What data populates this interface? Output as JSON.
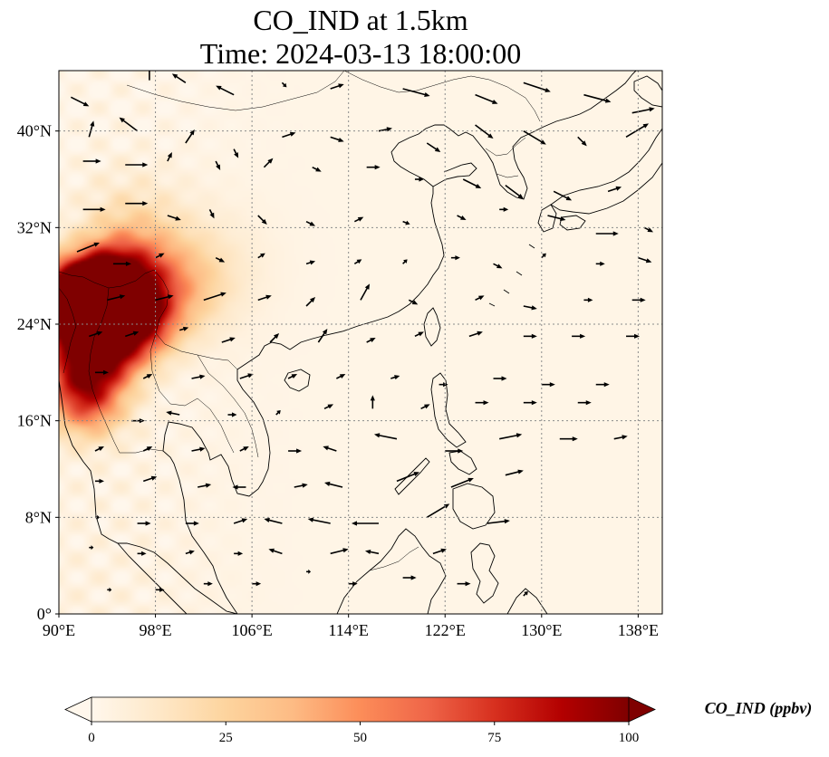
{
  "title": {
    "line1": "CO_IND at 1.5km",
    "line2": "Time: 2024-03-13 18:00:00"
  },
  "map": {
    "extent": {
      "lon_min": 90,
      "lon_max": 140,
      "lat_min": 0,
      "lat_max": 45
    },
    "projection": "PlateCarree",
    "gridlines": "dotted",
    "lon_ticks": [
      {
        "value": 90,
        "label": "90°E"
      },
      {
        "value": 98,
        "label": "98°E"
      },
      {
        "value": 106,
        "label": "106°E"
      },
      {
        "value": 114,
        "label": "114°E"
      },
      {
        "value": 122,
        "label": "122°E"
      },
      {
        "value": 130,
        "label": "130°E"
      },
      {
        "value": 138,
        "label": "138°E"
      }
    ],
    "lat_ticks": [
      {
        "value": 0,
        "label": "0°"
      },
      {
        "value": 8,
        "label": "8°N"
      },
      {
        "value": 16,
        "label": "16°N"
      },
      {
        "value": 24,
        "label": "24°N"
      },
      {
        "value": 32,
        "label": "32°N"
      },
      {
        "value": 40,
        "label": "40°N"
      }
    ],
    "field_colormap": "OrRd",
    "field_hotspots": [
      {
        "lon": 90.8,
        "lat": 26.2,
        "value": 100,
        "sd": 2.0
      },
      {
        "lon": 92.5,
        "lat": 24.5,
        "value": 95,
        "sd": 2.2
      },
      {
        "lon": 93.5,
        "lat": 27.3,
        "value": 85,
        "sd": 2.0
      },
      {
        "lon": 95.5,
        "lat": 26.0,
        "value": 70,
        "sd": 2.0
      },
      {
        "lon": 94.0,
        "lat": 22.0,
        "value": 70,
        "sd": 2.0
      },
      {
        "lon": 91.5,
        "lat": 20.0,
        "value": 55,
        "sd": 2.4
      },
      {
        "lon": 97.0,
        "lat": 24.0,
        "value": 55,
        "sd": 2.0
      },
      {
        "lon": 96.0,
        "lat": 29.0,
        "value": 40,
        "sd": 2.5
      },
      {
        "lon": 99.5,
        "lat": 27.0,
        "value": 30,
        "sd": 2.5
      },
      {
        "lon": 92.5,
        "lat": 17.5,
        "value": 45,
        "sd": 2.0
      },
      {
        "lon": 102.0,
        "lat": 28.5,
        "value": 10,
        "sd": 3.5
      },
      {
        "lon": 96.0,
        "lat": 33.0,
        "value": 10,
        "sd": 3.0
      }
    ],
    "wind_vectors": [
      [
        91.0,
        42.8,
        2.0,
        -1.0
      ],
      [
        97.5,
        44.2,
        0.0,
        2.0
      ],
      [
        100.5,
        44.0,
        -1.5,
        1.0
      ],
      [
        104.5,
        43.0,
        -2.0,
        1.0
      ],
      [
        108.5,
        44.0,
        0.5,
        -0.5
      ],
      [
        112.5,
        43.5,
        1.5,
        0.5
      ],
      [
        118.5,
        43.5,
        3.0,
        -0.8
      ],
      [
        124.5,
        43.0,
        2.5,
        -1.0
      ],
      [
        128.5,
        44.0,
        3.0,
        -1.0
      ],
      [
        133.5,
        43.0,
        3.0,
        -0.8
      ],
      [
        137.5,
        41.5,
        2.5,
        0.5
      ],
      [
        92.5,
        39.5,
        0.5,
        1.8
      ],
      [
        96.5,
        40.0,
        -2.0,
        1.5
      ],
      [
        100.5,
        39.0,
        1.0,
        1.5
      ],
      [
        104.5,
        38.5,
        0.5,
        -1.0
      ],
      [
        108.5,
        39.5,
        1.5,
        0.5
      ],
      [
        112.5,
        39.5,
        1.5,
        -0.5
      ],
      [
        116.5,
        40.0,
        1.5,
        0.3
      ],
      [
        120.5,
        39.0,
        1.5,
        -1.0
      ],
      [
        124.5,
        40.5,
        2.0,
        -1.5
      ],
      [
        128.5,
        40.0,
        2.5,
        -1.5
      ],
      [
        133.0,
        39.5,
        1.0,
        -1.0
      ],
      [
        137.0,
        39.5,
        2.5,
        1.5
      ],
      [
        92.0,
        37.5,
        2.0,
        0.0
      ],
      [
        95.5,
        37.2,
        2.5,
        0.0
      ],
      [
        99.0,
        37.5,
        0.5,
        1.0
      ],
      [
        103.0,
        37.5,
        0.5,
        -1.0
      ],
      [
        107.0,
        37.0,
        1.0,
        1.0
      ],
      [
        111.0,
        37.0,
        1.0,
        -0.5
      ],
      [
        115.5,
        37.0,
        1.5,
        0.0
      ],
      [
        119.5,
        36.0,
        1.0,
        0.0
      ],
      [
        123.5,
        36.0,
        2.0,
        -1.0
      ],
      [
        127.0,
        35.5,
        2.0,
        -1.5
      ],
      [
        131.0,
        35.0,
        2.0,
        -1.0
      ],
      [
        135.5,
        35.0,
        1.5,
        0.5
      ],
      [
        92.0,
        33.5,
        2.5,
        0.0
      ],
      [
        95.5,
        34.0,
        2.5,
        0.0
      ],
      [
        99.0,
        33.0,
        1.5,
        -0.5
      ],
      [
        102.5,
        33.5,
        0.5,
        -1.0
      ],
      [
        106.5,
        33.0,
        1.0,
        -1.0
      ],
      [
        110.5,
        32.5,
        1.0,
        -0.5
      ],
      [
        114.5,
        32.5,
        1.0,
        0.5
      ],
      [
        118.5,
        32.5,
        0.8,
        -0.3
      ],
      [
        123.0,
        33.0,
        1.0,
        -0.5
      ],
      [
        126.5,
        33.5,
        1.0,
        0.0
      ],
      [
        130.5,
        33.0,
        2.0,
        -0.5
      ],
      [
        134.5,
        31.5,
        2.5,
        0.0
      ],
      [
        138.5,
        32.0,
        1.0,
        -0.5
      ],
      [
        91.5,
        30.0,
        2.5,
        1.0
      ],
      [
        94.5,
        29.0,
        2.0,
        0.0
      ],
      [
        98.0,
        29.5,
        1.0,
        0.5
      ],
      [
        103.0,
        29.5,
        1.0,
        -0.5
      ],
      [
        106.5,
        29.5,
        0.8,
        0.5
      ],
      [
        110.5,
        29.0,
        1.0,
        0.3
      ],
      [
        114.5,
        29.0,
        0.8,
        0.5
      ],
      [
        118.5,
        29.0,
        0.5,
        0.5
      ],
      [
        122.5,
        29.5,
        1.0,
        0.0
      ],
      [
        126.0,
        29.0,
        1.0,
        -0.5
      ],
      [
        130.0,
        29.5,
        0.5,
        0.5
      ],
      [
        134.5,
        29.0,
        1.0,
        0.0
      ],
      [
        138.0,
        29.5,
        1.5,
        -0.5
      ],
      [
        94.0,
        26.0,
        2.0,
        0.5
      ],
      [
        98.0,
        26.0,
        2.0,
        0.5
      ],
      [
        102.0,
        26.0,
        2.5,
        0.8
      ],
      [
        106.5,
        26.0,
        1.5,
        0.5
      ],
      [
        110.5,
        25.5,
        1.0,
        1.0
      ],
      [
        115.0,
        26.0,
        1.0,
        1.8
      ],
      [
        119.0,
        26.0,
        1.0,
        -0.5
      ],
      [
        124.5,
        26.0,
        1.0,
        0.5
      ],
      [
        128.5,
        25.5,
        1.5,
        -0.3
      ],
      [
        133.5,
        26.0,
        1.0,
        0.0
      ],
      [
        137.5,
        26.0,
        1.5,
        0.0
      ],
      [
        92.5,
        23.0,
        1.5,
        0.5
      ],
      [
        95.5,
        23.0,
        1.5,
        0.5
      ],
      [
        100.0,
        23.5,
        1.0,
        0.3
      ],
      [
        103.5,
        22.5,
        1.5,
        0.5
      ],
      [
        107.5,
        22.5,
        1.0,
        1.0
      ],
      [
        111.5,
        22.5,
        1.0,
        1.5
      ],
      [
        115.5,
        22.5,
        1.0,
        0.5
      ],
      [
        119.5,
        23.0,
        1.0,
        0.5
      ],
      [
        124.0,
        23.0,
        1.5,
        0.5
      ],
      [
        128.5,
        23.0,
        1.5,
        0.0
      ],
      [
        132.5,
        23.0,
        1.5,
        0.0
      ],
      [
        137.0,
        23.0,
        1.5,
        0.0
      ],
      [
        93.0,
        20.0,
        1.5,
        0.0
      ],
      [
        97.0,
        19.5,
        1.0,
        0.5
      ],
      [
        101.0,
        19.5,
        1.5,
        0.3
      ],
      [
        105.0,
        19.5,
        1.5,
        0.5
      ],
      [
        109.0,
        19.5,
        1.0,
        0.5
      ],
      [
        113.0,
        19.5,
        1.0,
        0.5
      ],
      [
        117.5,
        19.5,
        1.0,
        0.3
      ],
      [
        121.5,
        19.0,
        1.0,
        0.0
      ],
      [
        126.0,
        19.5,
        1.5,
        0.0
      ],
      [
        130.0,
        19.0,
        1.5,
        0.0
      ],
      [
        134.5,
        19.0,
        1.5,
        0.0
      ],
      [
        96.0,
        16.0,
        1.5,
        0.0
      ],
      [
        100.0,
        16.5,
        -1.5,
        0.3
      ],
      [
        104.0,
        16.5,
        1.0,
        0.0
      ],
      [
        108.0,
        16.5,
        0.5,
        0.5
      ],
      [
        112.0,
        17.0,
        1.0,
        0.5
      ],
      [
        116.0,
        17.0,
        0.0,
        1.5
      ],
      [
        120.0,
        17.0,
        1.0,
        0.5
      ],
      [
        124.5,
        17.5,
        1.5,
        0.0
      ],
      [
        128.5,
        17.5,
        1.5,
        0.0
      ],
      [
        133.0,
        17.5,
        1.5,
        0.0
      ],
      [
        93.0,
        13.5,
        1.0,
        0.5
      ],
      [
        97.0,
        13.5,
        1.0,
        0.5
      ],
      [
        101.0,
        13.5,
        1.5,
        0.3
      ],
      [
        105.0,
        13.5,
        1.0,
        0.5
      ],
      [
        109.0,
        13.5,
        1.5,
        0.0
      ],
      [
        113.0,
        13.5,
        -1.5,
        0.5
      ],
      [
        118.0,
        14.5,
        -2.5,
        0.5
      ],
      [
        122.0,
        13.5,
        2.0,
        0.0
      ],
      [
        126.5,
        14.5,
        2.5,
        0.5
      ],
      [
        131.5,
        14.5,
        2.0,
        0.0
      ],
      [
        136.0,
        14.5,
        1.5,
        0.3
      ],
      [
        93.0,
        11.0,
        1.0,
        0.0
      ],
      [
        97.0,
        11.0,
        1.5,
        0.5
      ],
      [
        101.5,
        10.5,
        1.5,
        0.3
      ],
      [
        105.5,
        10.5,
        -1.5,
        0.0
      ],
      [
        109.5,
        10.5,
        1.5,
        0.3
      ],
      [
        113.5,
        10.5,
        -2.0,
        0.5
      ],
      [
        118.0,
        11.0,
        2.5,
        1.0
      ],
      [
        122.5,
        10.5,
        2.5,
        1.0
      ],
      [
        127.0,
        11.5,
        2.0,
        0.5
      ],
      [
        93.0,
        8.0,
        0.5,
        0.0
      ],
      [
        96.5,
        7.5,
        1.5,
        0.0
      ],
      [
        100.5,
        7.5,
        1.5,
        0.0
      ],
      [
        104.5,
        7.5,
        1.5,
        0.5
      ],
      [
        108.5,
        7.5,
        -2.0,
        0.5
      ],
      [
        112.5,
        7.5,
        -2.5,
        0.5
      ],
      [
        116.5,
        7.5,
        -3.0,
        0.0
      ],
      [
        120.5,
        8.0,
        2.5,
        1.5
      ],
      [
        125.5,
        7.5,
        2.5,
        0.3
      ],
      [
        92.5,
        5.5,
        0.5,
        0.0
      ],
      [
        96.5,
        5.0,
        1.0,
        0.0
      ],
      [
        100.5,
        5.0,
        1.0,
        0.3
      ],
      [
        104.5,
        5.0,
        1.0,
        0.0
      ],
      [
        108.5,
        5.0,
        -1.5,
        0.5
      ],
      [
        112.5,
        5.0,
        2.0,
        0.5
      ],
      [
        116.5,
        5.0,
        -1.5,
        0.3
      ],
      [
        121.0,
        5.0,
        1.5,
        0.5
      ],
      [
        94.0,
        2.0,
        0.5,
        0.0
      ],
      [
        98.0,
        2.0,
        1.0,
        0.0
      ],
      [
        102.0,
        2.5,
        1.0,
        0.0
      ],
      [
        106.0,
        2.5,
        1.0,
        0.0
      ],
      [
        110.5,
        3.5,
        0.5,
        0.0
      ],
      [
        114.0,
        2.5,
        1.0,
        0.0
      ],
      [
        118.5,
        3.0,
        1.5,
        0.0
      ],
      [
        123.0,
        2.5,
        1.5,
        0.0
      ],
      [
        128.5,
        1.5,
        0.5,
        0.5
      ]
    ]
  },
  "colorbar": {
    "label": "CO_IND (ppbv)",
    "min": 0,
    "max": 100,
    "extend": "both",
    "ticks": [
      {
        "value": 0,
        "label": "0"
      },
      {
        "value": 25,
        "label": "25"
      },
      {
        "value": 50,
        "label": "50"
      },
      {
        "value": 75,
        "label": "75"
      },
      {
        "value": 100,
        "label": "100"
      }
    ]
  }
}
